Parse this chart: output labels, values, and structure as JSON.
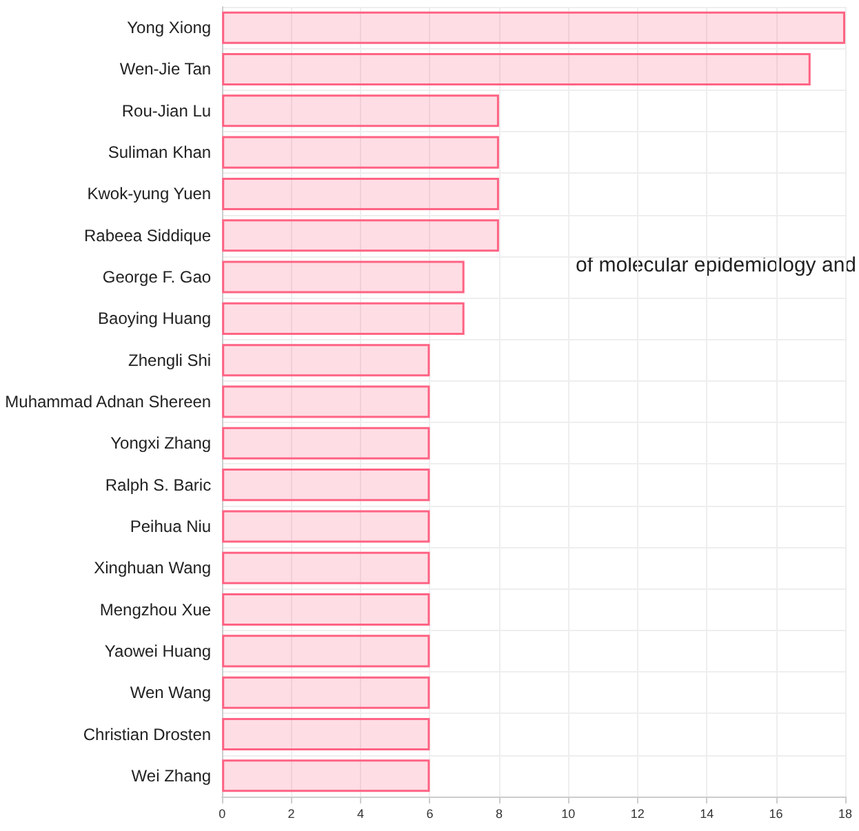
{
  "chart_data": {
    "type": "bar",
    "orientation": "horizontal",
    "categories": [
      "Yong Xiong",
      "Wen-Jie Tan",
      "Rou-Jian Lu",
      "Suliman Khan",
      "Kwok-yung Yuen",
      "Rabeea Siddique",
      "George F. Gao",
      "Baoying Huang",
      "Zhengli Shi",
      "Muhammad Adnan Shereen",
      "Yongxi Zhang",
      "Ralph S. Baric",
      "Peihua Niu",
      "Xinghuan Wang",
      "Mengzhou Xue",
      "Yaowei Huang",
      "Wen Wang",
      "Christian Drosten",
      "Wei Zhang"
    ],
    "values": [
      18,
      17,
      8,
      8,
      8,
      8,
      7,
      7,
      6,
      6,
      6,
      6,
      6,
      6,
      6,
      6,
      6,
      6,
      6
    ],
    "color": "#ff6384",
    "xlim": [
      0,
      18
    ],
    "xticks": [
      0,
      2,
      4,
      6,
      8,
      10,
      12,
      14,
      16,
      18
    ],
    "grid": true,
    "annotations": [
      "of molecular epidemiology and"
    ]
  }
}
